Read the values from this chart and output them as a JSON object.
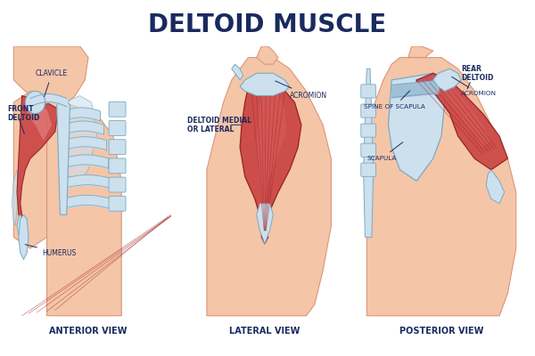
{
  "title": "DELTOID MUSCLE",
  "title_fontsize": 20,
  "title_color": "#1a2a5e",
  "title_weight": "bold",
  "background_color": "#ffffff",
  "skin_color": "#f5c5a8",
  "skin_edge_color": "#d9967a",
  "muscle_fill": "#c94040",
  "muscle_edge": "#8b1a1a",
  "muscle_mid": "#d96060",
  "muscle_light": "#e89090",
  "bone_fill": "#cce0ee",
  "bone_edge": "#7aaac0",
  "bone_dark": "#a0c0d8",
  "label_color": "#1a2a5e",
  "label_fontsize": 5.5,
  "view_label_fontsize": 7.0,
  "view_labels": [
    "ANTERIOR VIEW",
    "LATERAL VIEW",
    "POSTERIOR VIEW"
  ]
}
